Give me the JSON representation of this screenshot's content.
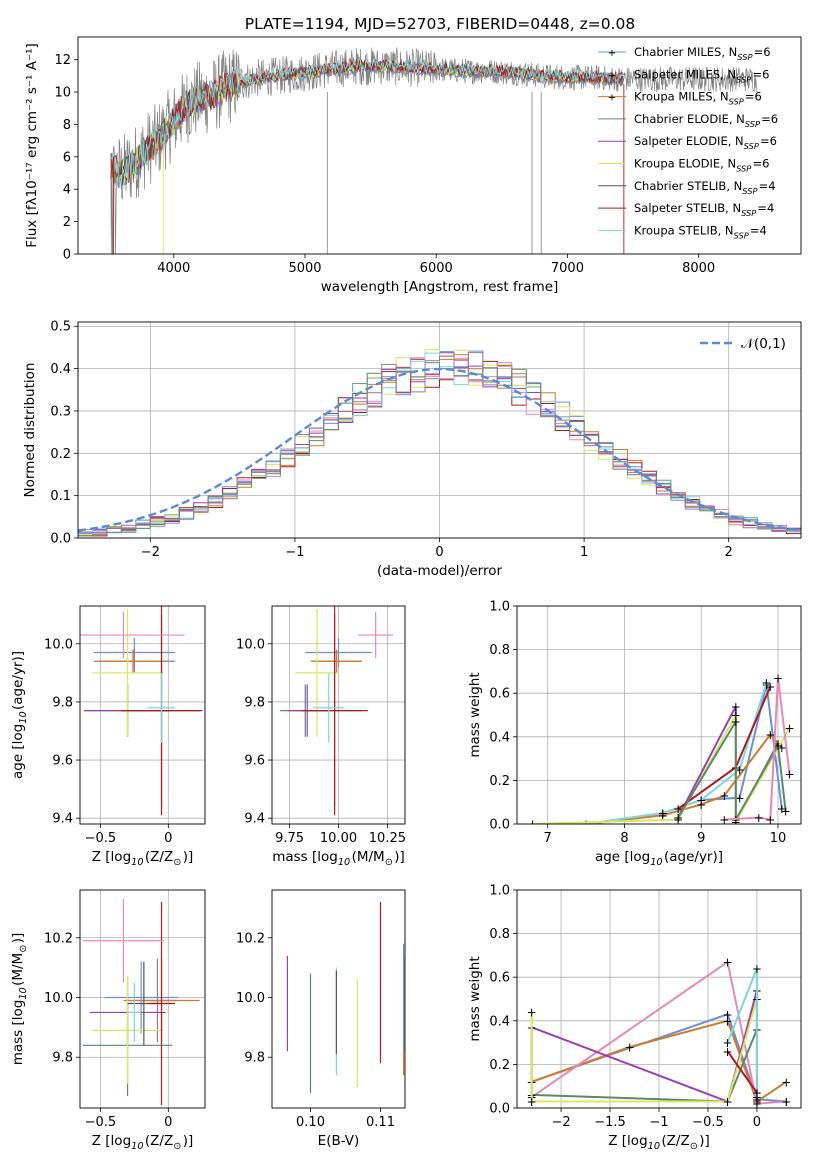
{
  "figure": {
    "title": "PLATE=1194, MJD=52703, FIBERID=0448, z=0.08",
    "colors": {
      "Chabrier MILES": "#6a8fdc",
      "Salpeter MILES": "#8e7a9b",
      "Kroupa MILES": "#d07a2a",
      "Chabrier ELODIE": "#5a8a6a",
      "Salpeter ELODIE": "#9b3fb5",
      "Kroupa ELODIE": "#d8e860",
      "Chabrier STELIB": "#555555",
      "Salpeter STELIB": "#b01c1c",
      "Kroupa STELIB": "#7dd6dc",
      "extra_pink": "#e38ab8",
      "data_gray": "#808080",
      "normal_dashed": "#5b8bd6"
    }
  },
  "chart_data": [
    {
      "id": "spectrum",
      "type": "line",
      "title": "PLATE=1194, MJD=52703, FIBERID=0448, z=0.08",
      "xlabel": "wavelength [Angstrom, rest frame]",
      "ylabel": "Flux [fλ10⁻¹⁷ erg cm⁻² s⁻¹ A⁻¹]",
      "xlim": [
        3270,
        8780
      ],
      "ylim": [
        0,
        13.4
      ],
      "xticks": [
        4000,
        5000,
        6000,
        7000,
        8000
      ],
      "yticks": [
        0,
        2,
        4,
        6,
        8,
        10,
        12
      ],
      "grid": false,
      "legend_position": "top-right",
      "legend": [
        "Chabrier MILES, N$_{SSP}$=6",
        "Salpeter MILES, N$_{SSP}$=6",
        "Kroupa MILES, N$_{SSP}$=6",
        "Chabrier ELODIE, N$_{SSP}$=6",
        "Salpeter ELODIE, N$_{SSP}$=6",
        "Kroupa ELODIE, N$_{SSP}$=6",
        "Chabrier STELIB, N$_{SSP}$=4",
        "Salpeter STELIB, N$_{SSP}$=4",
        "Kroupa STELIB, N$_{SSP}$=4"
      ],
      "continuum": {
        "x": [
          3500,
          3600,
          3700,
          3800,
          3900,
          4000,
          4100,
          4200,
          4300,
          4400,
          4500,
          4600,
          4800,
          5000,
          5200,
          5400,
          5600,
          5800,
          6000,
          6200,
          6400,
          6600,
          6800,
          7000,
          7200,
          7400
        ],
        "y": [
          5.5,
          5.0,
          5.6,
          6.5,
          7.2,
          8.2,
          9.2,
          9.6,
          9.8,
          10.3,
          10.6,
          10.8,
          11.0,
          11.2,
          11.4,
          11.6,
          11.6,
          11.5,
          11.4,
          11.3,
          11.3,
          11.2,
          11.0,
          10.9,
          10.9,
          10.8
        ]
      },
      "data_range": [
        3520,
        8450
      ],
      "model_range": [
        3520,
        7430
      ]
    },
    {
      "id": "residuals",
      "type": "area",
      "xlabel": "(data-model)/error",
      "ylabel": "Normed distribution",
      "xlim": [
        -2.5,
        2.5
      ],
      "ylim": [
        0,
        0.51
      ],
      "xticks": [
        -2,
        -1,
        0,
        1,
        2
      ],
      "yticks": [
        0.0,
        0.1,
        0.2,
        0.3,
        0.4,
        0.5
      ],
      "grid": true,
      "legend_position": "top-right",
      "legend": [
        "$\\mathcal{N}(0,1)$"
      ],
      "bin_width": 0.1,
      "bin_start": -2.5
    },
    {
      "id": "age-Z",
      "type": "scatter",
      "xlabel": "Z [log$_{10}$(Z/Z$_\\odot$)]",
      "ylabel": "age  [log$_{10}$(age/yr)]",
      "xlim": [
        -0.65,
        0.27
      ],
      "ylim": [
        9.38,
        10.13
      ],
      "xticks": [
        -0.5,
        0.0
      ],
      "yticks": [
        9.4,
        9.6,
        9.8,
        10.0
      ],
      "grid": true,
      "points": [
        {
          "model": "Chabrier MILES",
          "x": -0.25,
          "y": 9.97,
          "xerr": 0.3,
          "yerr": 0.05
        },
        {
          "model": "Salpeter MILES",
          "x": -0.25,
          "y": 9.94,
          "xerr": 0.3,
          "yerr": 0.04
        },
        {
          "model": "Kroupa MILES",
          "x": -0.26,
          "y": 9.94,
          "xerr": 0.24,
          "yerr": 0.04
        },
        {
          "model": "Chabrier ELODIE",
          "x": -0.3,
          "y": 9.77,
          "xerr": 0.32,
          "yerr": 0.09
        },
        {
          "model": "Salpeter ELODIE",
          "x": -0.3,
          "y": 9.77,
          "xerr": 0.32,
          "yerr": 0.09
        },
        {
          "model": "Kroupa ELODIE",
          "x": -0.3,
          "y": 9.9,
          "xerr": 0.26,
          "yerr": 0.22
        },
        {
          "model": "Chabrier STELIB",
          "x": -0.05,
          "y": 9.77,
          "xerr": 0.28,
          "yerr": 0.33
        },
        {
          "model": "Salpeter STELIB",
          "x": -0.05,
          "y": 9.77,
          "xerr": 0.3,
          "yerr": 0.36
        },
        {
          "model": "Kroupa STELIB",
          "x": -0.05,
          "y": 9.78,
          "xerr": 0.1,
          "yerr": 0.12
        },
        {
          "model": "extra_pink",
          "x": -0.33,
          "y": 10.03,
          "xerr": 0.45,
          "yerr": 0.08
        }
      ]
    },
    {
      "id": "age-mass",
      "type": "scatter",
      "xlabel": "mass [log$_{10}$(M/M$_\\odot$)]",
      "xlim": [
        9.66,
        10.34
      ],
      "ylim": [
        9.38,
        10.13
      ],
      "xticks": [
        9.75,
        10.0,
        10.25
      ],
      "xticklabels": [
        "9.75",
        "10.00",
        "10.25"
      ],
      "yticks": [
        9.4,
        9.6,
        9.8,
        10.0
      ],
      "grid": true,
      "points": [
        {
          "model": "Chabrier MILES",
          "x": 10.0,
          "y": 9.97,
          "xerr": 0.17,
          "yerr": 0.05
        },
        {
          "model": "Salpeter MILES",
          "x": 9.99,
          "y": 9.94,
          "xerr": 0.13,
          "yerr": 0.04
        },
        {
          "model": "Kroupa MILES",
          "x": 9.99,
          "y": 9.94,
          "xerr": 0.13,
          "yerr": 0.04
        },
        {
          "model": "Chabrier ELODIE",
          "x": 9.83,
          "y": 9.77,
          "xerr": 0.13,
          "yerr": 0.09
        },
        {
          "model": "Salpeter ELODIE",
          "x": 9.84,
          "y": 9.77,
          "xerr": 0.1,
          "yerr": 0.09
        },
        {
          "model": "Kroupa ELODIE",
          "x": 9.89,
          "y": 9.9,
          "xerr": 0.11,
          "yerr": 0.22
        },
        {
          "model": "Chabrier STELIB",
          "x": 9.98,
          "y": 9.77,
          "xerr": 0.14,
          "yerr": 0.33
        },
        {
          "model": "Salpeter STELIB",
          "x": 9.98,
          "y": 9.77,
          "xerr": 0.17,
          "yerr": 0.36
        },
        {
          "model": "Kroupa STELIB",
          "x": 9.95,
          "y": 9.78,
          "xerr": 0.08,
          "yerr": 0.12
        },
        {
          "model": "extra_pink",
          "x": 10.19,
          "y": 10.03,
          "xerr": 0.09,
          "yerr": 0.08
        }
      ]
    },
    {
      "id": "weight-age",
      "type": "line",
      "xlabel": "age  [log$_{10}$(age/yr)]",
      "ylabel": "mass weight",
      "xlim": [
        6.6,
        10.3
      ],
      "ylim": [
        0,
        1
      ],
      "xticks": [
        7,
        8,
        9,
        10
      ],
      "yticks": [
        0.0,
        0.2,
        0.4,
        0.6,
        0.8,
        1.0
      ],
      "grid": true,
      "series": [
        {
          "model": "Chabrier MILES",
          "x": [
            7.5,
            8.5,
            9.0,
            9.5,
            9.85,
            10.05
          ],
          "y": [
            0.0,
            0.05,
            0.11,
            0.12,
            0.64,
            0.07
          ]
        },
        {
          "model": "Kroupa MILES",
          "x": [
            7.5,
            8.5,
            9.0,
            9.3,
            9.9,
            10.05
          ],
          "y": [
            0.0,
            0.04,
            0.09,
            0.13,
            0.41,
            0.35
          ]
        },
        {
          "model": "Kroupa STELIB",
          "x": [
            7.5,
            8.5,
            9.0,
            9.5,
            9.85
          ],
          "y": [
            0.0,
            0.05,
            0.11,
            0.25,
            0.65
          ]
        },
        {
          "model": "Salpeter ELODIE",
          "x": [
            8.7,
            9.45,
            9.45,
            10.0
          ],
          "y": [
            0.03,
            0.54,
            0.01,
            0.37
          ]
        },
        {
          "model": "Kroupa ELODIE",
          "x": [
            6.8,
            8.7,
            9.45,
            9.45,
            10.15
          ],
          "y": [
            0.0,
            0.02,
            0.5,
            0.01,
            0.44
          ]
        },
        {
          "model": "Salpeter STELIB",
          "x": [
            8.7,
            9.45,
            9.9
          ],
          "y": [
            0.07,
            0.26,
            0.63
          ]
        },
        {
          "model": "Chabrier ELODIE",
          "x": [
            8.7,
            9.45,
            9.45,
            10.0,
            10.1
          ],
          "y": [
            0.03,
            0.47,
            0.02,
            0.36,
            0.06
          ]
        },
        {
          "model": "extra_pink",
          "x": [
            9.3,
            9.75,
            9.9,
            10.0,
            10.15
          ],
          "y": [
            0.02,
            0.03,
            0.02,
            0.67,
            0.23
          ]
        }
      ]
    },
    {
      "id": "mass-Z",
      "type": "scatter",
      "xlabel": "Z [log$_{10}$(Z/Z$_\\odot$)]",
      "ylabel": "mass [log$_{10}$(M/M$_\\odot$)]",
      "xlim": [
        -0.65,
        0.27
      ],
      "ylim": [
        9.63,
        10.36
      ],
      "xticks": [
        -0.5,
        0.0
      ],
      "yticks": [
        9.8,
        10.0,
        10.2
      ],
      "grid": true,
      "points": [
        {
          "model": "Chabrier MILES",
          "x": -0.2,
          "y": 10.0,
          "xerr": 0.27,
          "yerr": 0.12
        },
        {
          "model": "Salpeter MILES",
          "x": -0.08,
          "y": 9.99,
          "xerr": 0.15,
          "yerr": 0.14
        },
        {
          "model": "Kroupa MILES",
          "x": -0.05,
          "y": 9.99,
          "xerr": 0.28,
          "yerr": 0.14
        },
        {
          "model": "Chabrier ELODIE",
          "x": -0.3,
          "y": 9.84,
          "xerr": 0.33,
          "yerr": 0.17
        },
        {
          "model": "Salpeter ELODIE",
          "x": -0.3,
          "y": 9.95,
          "xerr": 0.28,
          "yerr": 0.12
        },
        {
          "model": "Kroupa ELODIE",
          "x": -0.3,
          "y": 9.89,
          "xerr": 0.26,
          "yerr": 0.18
        },
        {
          "model": "Chabrier STELIB",
          "x": -0.18,
          "y": 9.98,
          "xerr": 0.12,
          "yerr": 0.14
        },
        {
          "model": "Salpeter STELIB",
          "x": -0.05,
          "y": 9.98,
          "xerr": 0.1,
          "yerr": 0.34
        },
        {
          "model": "Kroupa STELIB",
          "x": -0.25,
          "y": 9.95,
          "xerr": 0.05,
          "yerr": 0.1
        },
        {
          "model": "extra_pink",
          "x": -0.33,
          "y": 10.19,
          "xerr": 0.3,
          "yerr": 0.14
        }
      ]
    },
    {
      "id": "mass-EBV",
      "type": "scatter",
      "xlabel": "E(B-V)",
      "xlim": [
        0.0945,
        0.1135
      ],
      "ylim": [
        9.63,
        10.36
      ],
      "xticks": [
        0.1,
        0.11
      ],
      "xticklabels": [
        "0.10",
        "0.11"
      ],
      "yticks": [
        9.8,
        10.0,
        10.2
      ],
      "grid": false,
      "points": [
        {
          "model": "Salpeter ELODIE",
          "x": 0.0967,
          "y": 9.98,
          "xerr": 0,
          "yerr": 0.16
        },
        {
          "model": "Chabrier ELODIE",
          "x": 0.1,
          "y": 9.88,
          "xerr": 0,
          "yerr": 0.2
        },
        {
          "model": "Kroupa STELIB",
          "x": 0.1037,
          "y": 9.92,
          "xerr": 0,
          "yerr": 0.18
        },
        {
          "model": "Chabrier STELIB",
          "x": 0.1037,
          "y": 9.95,
          "xerr": 0,
          "yerr": 0.14
        },
        {
          "model": "Kroupa ELODIE",
          "x": 0.1067,
          "y": 9.88,
          "xerr": 0,
          "yerr": 0.18
        },
        {
          "model": "Salpeter STELIB",
          "x": 0.11,
          "y": 10.05,
          "xerr": 0,
          "yerr": 0.27
        },
        {
          "model": "Kroupa MILES",
          "x": 0.1133,
          "y": 9.94,
          "xerr": 0,
          "yerr": 0.2
        },
        {
          "model": "Chabrier MILES",
          "x": 0.1133,
          "y": 10.0,
          "xerr": 0,
          "yerr": 0.18
        }
      ]
    },
    {
      "id": "weight-Z",
      "type": "line",
      "xlabel": "Z [log$_{10}$(Z/Z$_\\odot$)]",
      "ylabel": "mass weight",
      "xlim": [
        -2.45,
        0.45
      ],
      "ylim": [
        0,
        1
      ],
      "xticks": [
        -2.0,
        -1.5,
        -1.0,
        -0.5,
        0.0
      ],
      "yticks": [
        0.0,
        0.2,
        0.4,
        0.6,
        0.8,
        1.0
      ],
      "grid": true,
      "series": [
        {
          "model": "Chabrier MILES",
          "x": [
            -2.3,
            -0.3,
            0.0,
            0.3
          ],
          "y": [
            0.12,
            0.43,
            0.04,
            0.03
          ]
        },
        {
          "model": "Kroupa MILES",
          "x": [
            -2.3,
            -1.3,
            -0.3,
            0.0,
            0.3
          ],
          "y": [
            0.12,
            0.28,
            0.4,
            0.03,
            0.12
          ]
        },
        {
          "model": "extra_pink",
          "x": [
            -2.3,
            -0.3,
            0.0,
            0.3
          ],
          "y": [
            0.05,
            0.67,
            0.02,
            0.03
          ]
        },
        {
          "model": "Chabrier ELODIE",
          "x": [
            -2.3,
            -0.3,
            0.0
          ],
          "y": [
            0.06,
            0.03,
            0.36
          ]
        },
        {
          "model": "Salpeter ELODIE",
          "x": [
            -2.3,
            -2.3,
            -0.3,
            0.0,
            0.0
          ],
          "y": [
            0.03,
            0.37,
            0.03,
            0.54,
            0.04
          ]
        },
        {
          "model": "Kroupa ELODIE",
          "x": [
            -2.3,
            -2.3,
            -0.3,
            0.0
          ],
          "y": [
            0.44,
            0.03,
            0.03,
            0.5
          ]
        },
        {
          "model": "Kroupa STELIB",
          "x": [
            -0.3,
            0.0,
            0.0
          ],
          "y": [
            0.3,
            0.64,
            0.05
          ]
        },
        {
          "model": "Salpeter STELIB",
          "x": [
            -0.3,
            0.0
          ],
          "y": [
            0.26,
            0.07
          ]
        }
      ]
    }
  ]
}
